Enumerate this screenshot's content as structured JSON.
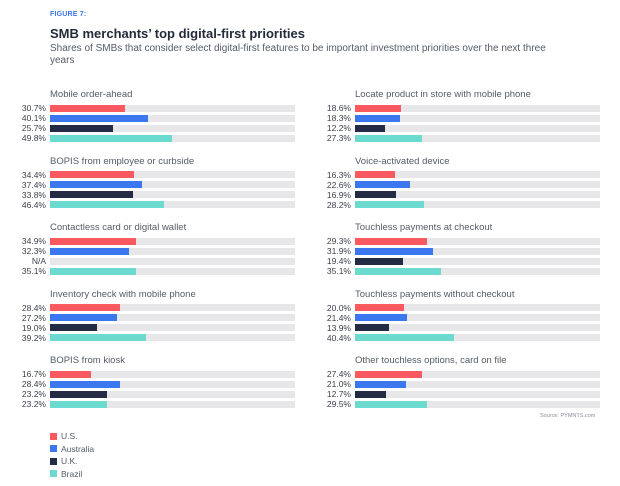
{
  "header": {
    "figure_label": "FIGURE 7:",
    "title": "SMB merchants’ top digital-first priorities",
    "subtitle": "Shares of SMBs that consider select digital-first features to be important investment priorities over the next three years"
  },
  "source": "Source: PYMNTS.com",
  "colors": {
    "U.S.": "#fa5a5f",
    "Australia": "#3b78f0",
    "U.K.": "#232c44",
    "Brazil": "#6ddad0",
    "track": "#e7e7e9"
  },
  "chart_data": {
    "type": "bar",
    "orientation": "horizontal",
    "title": "SMB merchants’ top digital-first priorities",
    "subtitle": "Shares of SMBs that consider select digital-first features to be important investment priorities over the next three years",
    "xlim": [
      0,
      100
    ],
    "unit": "%",
    "legend": {
      "position": "bottom-left",
      "entries": [
        "U.S.",
        "Australia",
        "U.K.",
        "Brazil"
      ]
    },
    "series_names": [
      "U.S.",
      "Australia",
      "U.K.",
      "Brazil"
    ],
    "panels": [
      {
        "category": "Mobile order-ahead",
        "column": "left",
        "values": [
          30.7,
          40.1,
          25.7,
          49.8
        ],
        "labels": [
          "30.7%",
          "40.1%",
          "25.7%",
          "49.8%"
        ]
      },
      {
        "category": "BOPIS from employee or curbside",
        "column": "left",
        "values": [
          34.4,
          37.4,
          33.8,
          46.4
        ],
        "labels": [
          "34.4%",
          "37.4%",
          "33.8%",
          "46.4%"
        ]
      },
      {
        "category": "Contactless card or digital wallet",
        "column": "left",
        "values": [
          34.9,
          32.3,
          null,
          35.1
        ],
        "labels": [
          "34.9%",
          "32.3%",
          "N/A",
          "35.1%"
        ]
      },
      {
        "category": "Inventory check with mobile phone",
        "column": "left",
        "values": [
          28.4,
          27.2,
          19.0,
          39.2
        ],
        "labels": [
          "28.4%",
          "27.2%",
          "19.0%",
          "39.2%"
        ]
      },
      {
        "category": "BOPIS from kiosk",
        "column": "left",
        "values": [
          16.7,
          28.4,
          23.2,
          23.2
        ],
        "labels": [
          "16.7%",
          "28.4%",
          "23.2%",
          "23.2%"
        ]
      },
      {
        "category": "Locate product in store with mobile phone",
        "column": "right",
        "values": [
          18.6,
          18.3,
          12.2,
          27.3
        ],
        "labels": [
          "18.6%",
          "18.3%",
          "12.2%",
          "27.3%"
        ]
      },
      {
        "category": "Voice-activated device",
        "column": "right",
        "values": [
          16.3,
          22.6,
          16.9,
          28.2
        ],
        "labels": [
          "16.3%",
          "22.6%",
          "16.9%",
          "28.2%"
        ]
      },
      {
        "category": "Touchless payments at checkout",
        "column": "right",
        "values": [
          29.3,
          31.9,
          19.4,
          35.1
        ],
        "labels": [
          "29.3%",
          "31.9%",
          "19.4%",
          "35.1%"
        ]
      },
      {
        "category": "Touchless payments without checkout",
        "column": "right",
        "values": [
          20.0,
          21.4,
          13.9,
          40.4
        ],
        "labels": [
          "20.0%",
          "21.4%",
          "13.9%",
          "40.4%"
        ]
      },
      {
        "category": "Other touchless options, card on file",
        "column": "right",
        "values": [
          27.4,
          21.0,
          12.7,
          29.5
        ],
        "labels": [
          "27.4%",
          "21.0%",
          "12.7%",
          "29.5%"
        ]
      }
    ]
  }
}
